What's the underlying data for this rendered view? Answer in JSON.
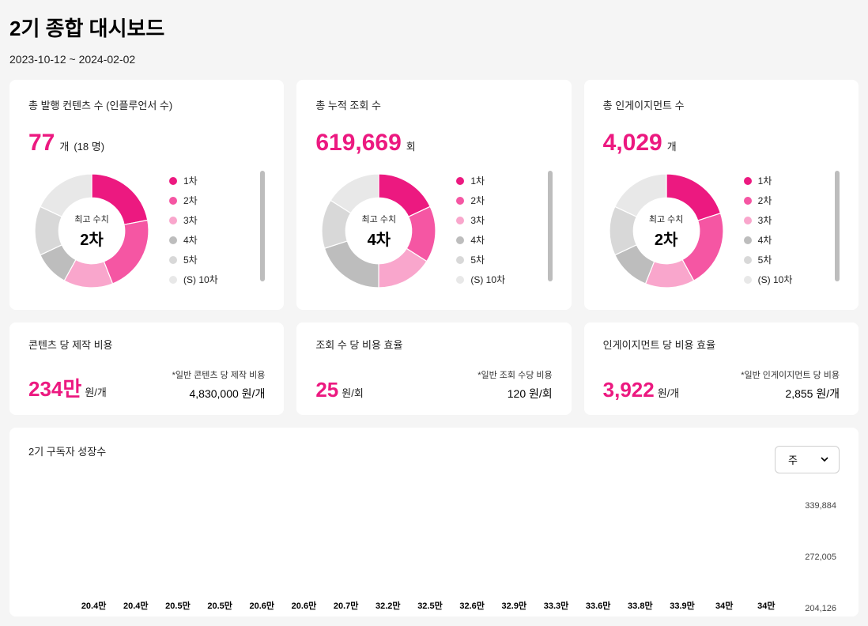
{
  "page": {
    "title": "2기 종합 대시보드",
    "date_range": "2023-10-12 ~ 2024-02-02",
    "background": "#f5f5f5"
  },
  "palette": {
    "accent": "#ec1980",
    "donut_colors": [
      "#ec1980",
      "#f556a3",
      "#f9a6cc",
      "#bdbdbd",
      "#d8d8d8",
      "#e8e8e8"
    ]
  },
  "donut_common": {
    "type": "donut",
    "center_label": "최고 수치",
    "legend_labels": [
      "1차",
      "2차",
      "3차",
      "4차",
      "5차",
      "(S) 10차"
    ],
    "segment_colors": [
      "#ec1980",
      "#f556a3",
      "#f9a6cc",
      "#bdbdbd",
      "#d8d8d8",
      "#e8e8e8"
    ],
    "inner_radius_pct": 58,
    "outer_radius_pct": 100,
    "bg": "#ffffff"
  },
  "stat_cards": [
    {
      "label": "총 발행 컨텐츠 수 (인플루언서 수)",
      "value": "77",
      "unit": "개",
      "sub": "(18 명)",
      "donut": {
        "center_value": "2차",
        "segments": [
          22,
          22,
          14,
          10,
          14,
          18
        ]
      }
    },
    {
      "label": "총 누적 조회 수",
      "value": "619,669",
      "unit": "회",
      "sub": "",
      "donut": {
        "center_value": "4차",
        "segments": [
          18,
          16,
          16,
          20,
          14,
          16
        ]
      }
    },
    {
      "label": "총 인게이지먼트 수",
      "value": "4,029",
      "unit": "개",
      "sub": "",
      "donut": {
        "center_value": "2차",
        "segments": [
          20,
          22,
          14,
          12,
          14,
          18
        ]
      }
    }
  ],
  "cost_cards": [
    {
      "label": "콘텐츠 당 제작 비용",
      "value": "234만",
      "unit": "원/개",
      "note": "*일반 콘텐츠 당 제작 비용",
      "ref": "4,830,000 원/개"
    },
    {
      "label": "조회 수 당 비용 효율",
      "value": "25",
      "unit": "원/회",
      "note": "*일반 조회 수당 비용",
      "ref": "120 원/회"
    },
    {
      "label": "인게이지먼트 당 비용 효율",
      "value": "3,922",
      "unit": "원/개",
      "note": "*일반 인게이지먼트 당 비용",
      "ref": "2,855 원/개"
    }
  ],
  "bar_chart": {
    "type": "bar",
    "title": "2기 구독자 성장수",
    "selector_value": "주",
    "bar_color": "#ec1980",
    "label_fontsize": 11,
    "y_ticks": [
      "339,884",
      "272,005",
      "204,126"
    ],
    "y_max": 360000,
    "bars": [
      {
        "label": "20.4만",
        "value": 204000
      },
      {
        "label": "20.4만",
        "value": 204000
      },
      {
        "label": "20.5만",
        "value": 205000
      },
      {
        "label": "20.5만",
        "value": 205000
      },
      {
        "label": "20.6만",
        "value": 206000
      },
      {
        "label": "20.6만",
        "value": 206000
      },
      {
        "label": "20.7만",
        "value": 207000
      },
      {
        "label": "32.2만",
        "value": 322000
      },
      {
        "label": "32.5만",
        "value": 325000
      },
      {
        "label": "32.6만",
        "value": 326000
      },
      {
        "label": "32.9만",
        "value": 329000
      },
      {
        "label": "33.3만",
        "value": 333000
      },
      {
        "label": "33.6만",
        "value": 336000
      },
      {
        "label": "33.8만",
        "value": 338000
      },
      {
        "label": "33.9만",
        "value": 339000
      },
      {
        "label": "34만",
        "value": 340000
      },
      {
        "label": "34만",
        "value": 340000
      }
    ]
  }
}
